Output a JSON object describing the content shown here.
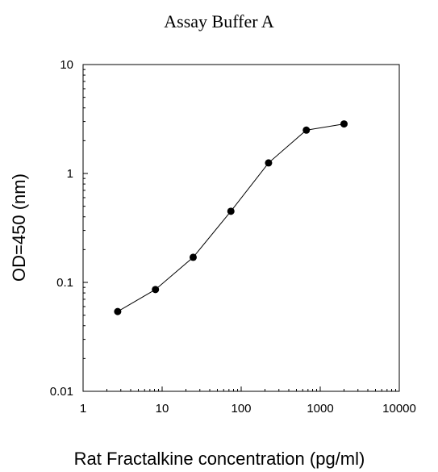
{
  "chart_data": {
    "type": "line",
    "title": "Assay Buffer A",
    "xlabel": "Rat Fractalkine concentration (pg/ml)",
    "ylabel": "OD=450 (nm)",
    "xscale": "log",
    "yscale": "log",
    "xlim": [
      1,
      10000
    ],
    "ylim": [
      0.01,
      10
    ],
    "xticks": [
      "1",
      "10",
      "100",
      "1000",
      "10000"
    ],
    "yticks": [
      "0.01",
      "0.1",
      "1",
      "10"
    ],
    "grid": false,
    "legend": "none",
    "series": [
      {
        "marker": "filled-circle",
        "color": "#000000",
        "x": [
          2.74,
          8.23,
          24.7,
          74.1,
          222,
          667,
          2000
        ],
        "y": [
          0.054,
          0.086,
          0.17,
          0.45,
          1.25,
          2.5,
          2.85
        ]
      }
    ]
  }
}
